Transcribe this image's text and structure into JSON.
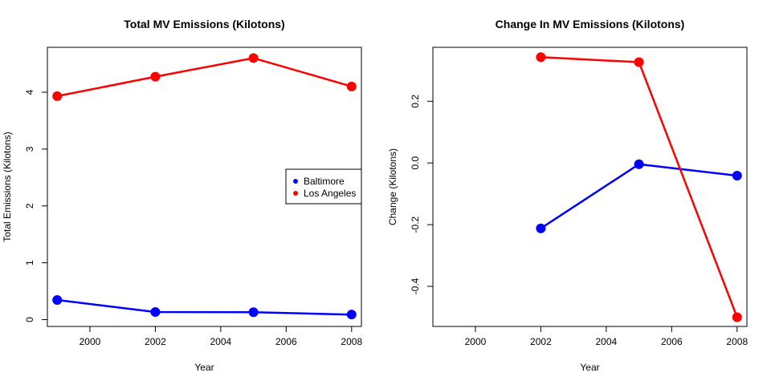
{
  "chart_data": [
    {
      "type": "line",
      "title": "Total MV Emissions (Kilotons)",
      "xlabel": "Year",
      "ylabel": "Total Emissions (Kilotons)",
      "xlim": [
        1998.7,
        2008.3
      ],
      "ylim": [
        -0.12,
        4.79
      ],
      "xticks": [
        2000,
        2002,
        2004,
        2006,
        2008
      ],
      "yticks": [
        0,
        1,
        2,
        3,
        4
      ],
      "legend_position": "right",
      "series": [
        {
          "name": "Baltimore",
          "color": "#0000ff",
          "x": [
            1999,
            2002,
            2005,
            2008
          ],
          "y": [
            0.346,
            0.134,
            0.13,
            0.089
          ]
        },
        {
          "name": "Los Angeles",
          "color": "#ff0000",
          "x": [
            1999,
            2002,
            2005,
            2008
          ],
          "y": [
            3.931,
            4.274,
            4.601,
            4.101
          ]
        }
      ]
    },
    {
      "type": "line",
      "title": "Change In MV Emissions (Kilotons)",
      "xlabel": "Year",
      "ylabel": "Change (Kilotons)",
      "xlim": [
        1998.7,
        2008.3
      ],
      "ylim": [
        -0.53,
        0.375
      ],
      "xticks": [
        2000,
        2002,
        2004,
        2006,
        2008
      ],
      "yticks": [
        -0.4,
        -0.2,
        0.0,
        0.2
      ],
      "ytick_labels": [
        "-0.4",
        "-0.2",
        "0.0",
        "0.2"
      ],
      "series": [
        {
          "name": "Baltimore",
          "color": "#0000ff",
          "x": [
            2002,
            2005,
            2008
          ],
          "y": [
            -0.212,
            -0.004,
            -0.041
          ]
        },
        {
          "name": "Los Angeles",
          "color": "#ff0000",
          "x": [
            2002,
            2005,
            2008
          ],
          "y": [
            0.343,
            0.327,
            -0.5
          ]
        }
      ]
    }
  ]
}
